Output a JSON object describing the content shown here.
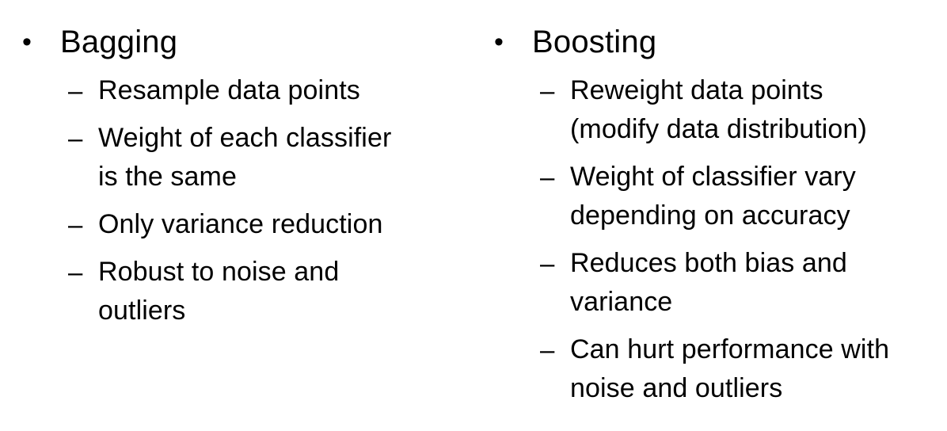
{
  "left": {
    "bullet": "•",
    "title": "Bagging",
    "items": [
      {
        "dash": "–",
        "text": "Resample data points"
      },
      {
        "dash": "–",
        "text": "Weight of each classifier\nis the same"
      },
      {
        "dash": "–",
        "text": "Only variance reduction"
      },
      {
        "dash": "–",
        "text": "Robust to noise and\noutliers"
      }
    ]
  },
  "right": {
    "bullet": "•",
    "title": "Boosting",
    "items": [
      {
        "dash": "–",
        "text": "Reweight data points\n(modify data distribution)"
      },
      {
        "dash": "–",
        "text": "Weight of classifier vary\ndepending on accuracy"
      },
      {
        "dash": "–",
        "text": "Reduces both bias and\nvariance"
      },
      {
        "dash": "–",
        "text": "Can hurt performance with\nnoise and outliers"
      }
    ]
  }
}
